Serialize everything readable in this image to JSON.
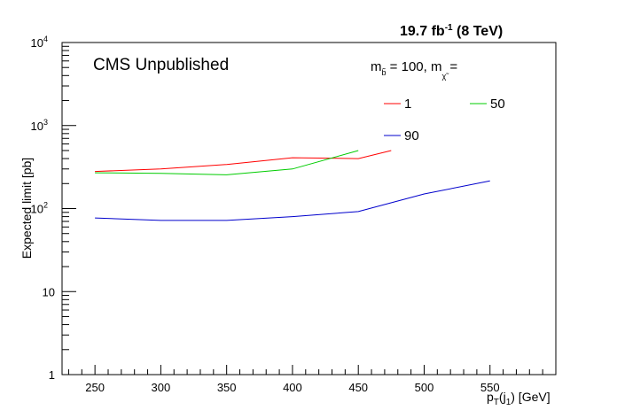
{
  "chart_data": {
    "type": "line",
    "title": "19.7 fb-1 (8 TeV)",
    "title_parts": {
      "lumi": "19.7 fb",
      "exp": "-1",
      "energy": " (8 TeV)"
    },
    "label": "CMS Unpublished",
    "xlabel": "[GeV]",
    "xlabel_parts": {
      "base": "p",
      "sub_t": "T",
      "paren_open": "(j",
      "sub_1": "1",
      "paren_close": ")",
      "unit": " [GeV]"
    },
    "ylabel": "Expected limit [pb]",
    "x_ticks": [
      250,
      300,
      350,
      400,
      450,
      500,
      550
    ],
    "xlim": [
      225,
      600
    ],
    "y_scale": "log",
    "ylim": [
      1,
      10000
    ],
    "y_ticks": [
      {
        "value": 1,
        "label": "1"
      },
      {
        "value": 10,
        "label": "10"
      },
      {
        "value": 100,
        "label": "10",
        "exp": "2"
      },
      {
        "value": 1000,
        "label": "10",
        "exp": "3"
      },
      {
        "value": 10000,
        "label": "10",
        "exp": "4"
      }
    ],
    "legend_header": {
      "m": "m",
      "sub_b": "b̃",
      "eq": " = 100, m",
      "sub_chi": "χ̃",
      "tail": " ="
    },
    "legend_placement": "top-right",
    "series": [
      {
        "name": "1",
        "color": "#ff0000",
        "x": [
          250,
          300,
          350,
          400,
          450,
          475
        ],
        "y": [
          280,
          300,
          340,
          410,
          400,
          500
        ]
      },
      {
        "name": "50",
        "color": "#00cc00",
        "x": [
          250,
          300,
          350,
          400,
          450
        ],
        "y": [
          270,
          265,
          255,
          300,
          500
        ]
      },
      {
        "name": "90",
        "color": "#0000cc",
        "x": [
          250,
          300,
          350,
          400,
          450,
          500,
          550
        ],
        "y": [
          77,
          72,
          72,
          80,
          92,
          150,
          215
        ]
      }
    ],
    "grid": false
  }
}
